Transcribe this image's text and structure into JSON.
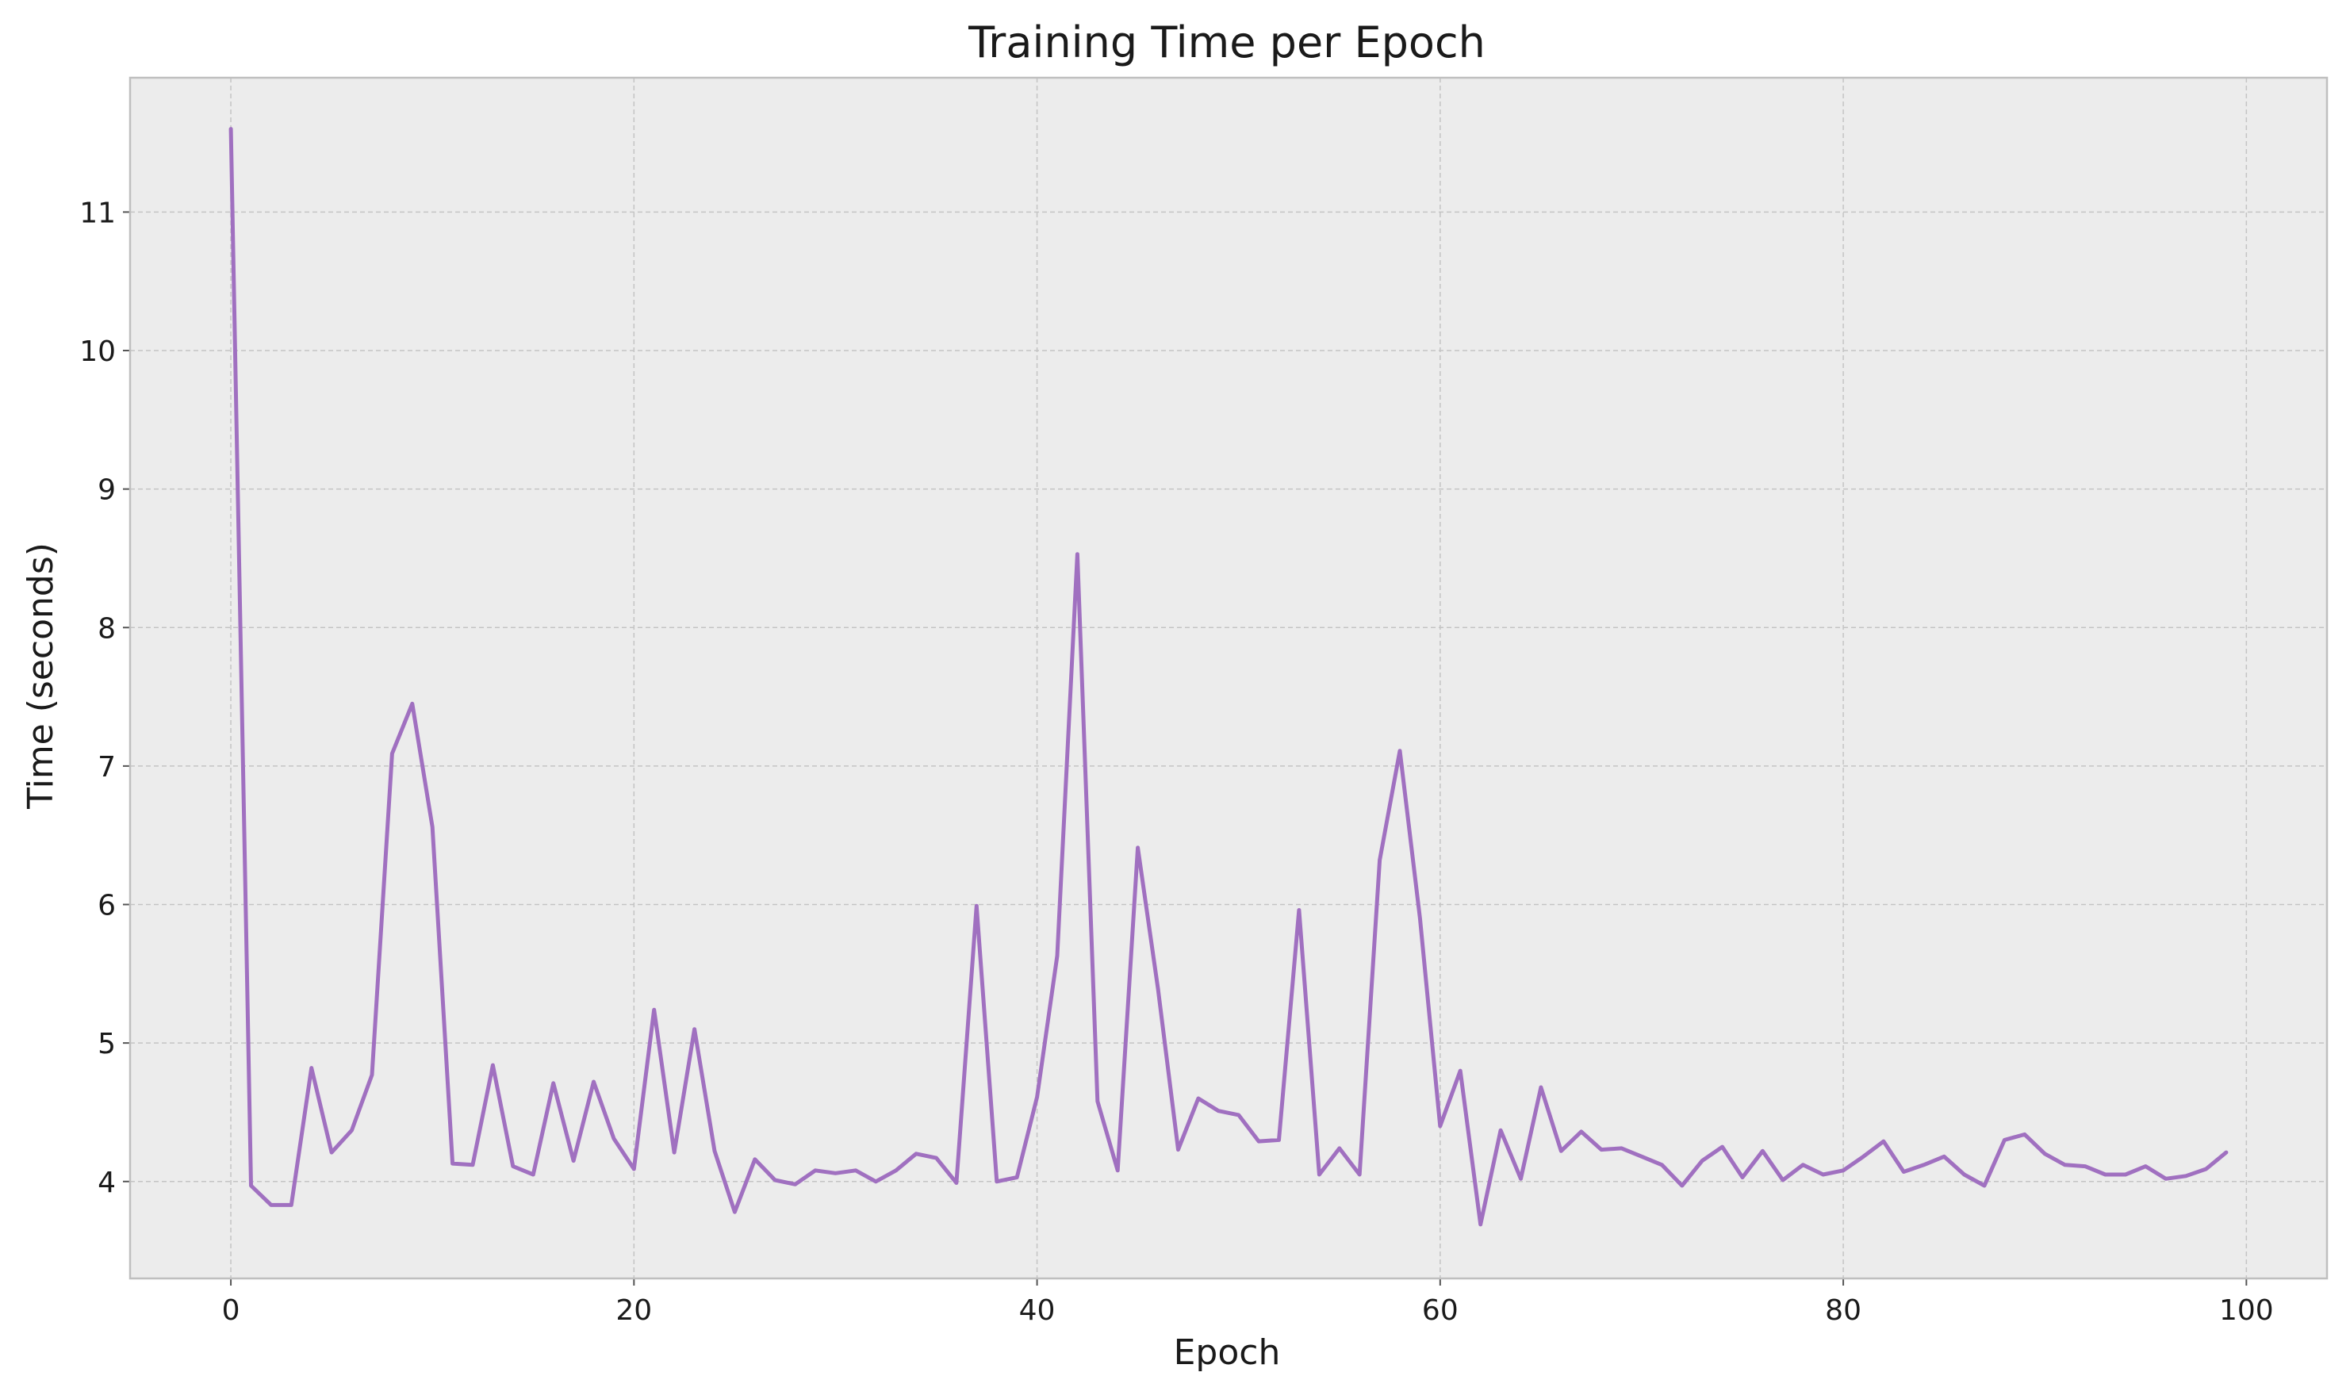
{
  "chart_data": {
    "type": "line",
    "title": "Training Time per Epoch",
    "xlabel": "Epoch",
    "ylabel": "Time (seconds)",
    "xlim": [
      -5,
      104
    ],
    "ylim": [
      3.3,
      11.97
    ],
    "x_ticks": [
      0,
      20,
      40,
      60,
      80,
      100
    ],
    "y_ticks": [
      4,
      5,
      6,
      7,
      8,
      9,
      10,
      11
    ],
    "grid": true,
    "colors": {
      "line": "#a070c0",
      "plot_background": "#ececec",
      "frame": "#bfbfbf"
    },
    "series": [
      {
        "x": [
          0,
          1,
          2,
          3,
          4,
          5,
          6,
          7,
          8,
          9,
          10,
          11,
          12,
          13,
          14,
          15,
          16,
          17,
          18,
          19,
          20,
          21,
          22,
          23,
          24,
          25,
          26,
          27,
          28,
          29,
          30,
          31,
          32,
          33,
          34,
          35,
          36,
          37,
          38,
          39,
          40,
          41,
          42,
          43,
          44,
          45,
          46,
          47,
          48,
          49,
          50,
          51,
          52,
          53,
          54,
          55,
          56,
          57,
          58,
          59,
          60,
          61,
          62,
          63,
          64,
          65,
          66,
          67,
          68,
          69,
          70,
          71,
          72,
          73,
          74,
          75,
          76,
          77,
          78,
          79,
          80,
          81,
          82,
          83,
          84,
          85,
          86,
          87,
          88,
          89,
          90,
          91,
          92,
          93,
          94,
          95,
          96,
          97,
          98,
          99
        ],
        "values": [
          11.6,
          3.97,
          3.83,
          3.83,
          4.82,
          4.21,
          4.37,
          4.77,
          7.09,
          7.45,
          6.56,
          4.13,
          4.12,
          4.84,
          4.11,
          4.05,
          4.71,
          4.15,
          4.72,
          4.31,
          4.09,
          5.24,
          4.21,
          5.1,
          4.22,
          3.78,
          4.16,
          4.01,
          3.98,
          4.08,
          4.06,
          4.08,
          4.0,
          4.08,
          4.2,
          4.17,
          3.99,
          5.99,
          4.0,
          4.03,
          4.61,
          5.63,
          8.53,
          4.58,
          4.08,
          6.41,
          5.39,
          4.23,
          4.6,
          4.51,
          4.48,
          4.29,
          4.3,
          5.96,
          4.05,
          4.24,
          4.05,
          6.32,
          7.11,
          5.9,
          4.4,
          4.8,
          3.69,
          4.37,
          4.02,
          4.68,
          4.22,
          4.36,
          4.23,
          4.24,
          4.18,
          4.12,
          3.97,
          4.15,
          4.25,
          4.03,
          4.22,
          4.01,
          4.12,
          4.05,
          4.08,
          4.18,
          4.29,
          4.07,
          4.12,
          4.18,
          4.05,
          3.97,
          4.3,
          4.34,
          4.2,
          4.12,
          4.11,
          4.05,
          4.05,
          4.11,
          4.02,
          4.04,
          4.09,
          4.21
        ]
      }
    ]
  }
}
